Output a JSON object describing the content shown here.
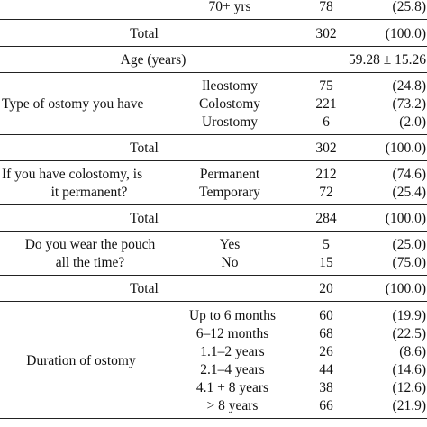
{
  "rows": {
    "age70": {
      "label": "70+ yrs",
      "n": "78",
      "pct": "(25.8)"
    },
    "total1": {
      "label": "Total",
      "n": "302",
      "pct": "(100.0)"
    },
    "age": {
      "label": "Age (years)",
      "value": "59.28 ± 15.26"
    },
    "ostomy_type": {
      "question": "Type of ostomy you have",
      "items": [
        {
          "label": "Ileostomy",
          "n": "75",
          "pct": "(24.8)"
        },
        {
          "label": "Colostomy",
          "n": "221",
          "pct": "(73.2)"
        },
        {
          "label": "Urostomy",
          "n": "6",
          "pct": "(2.0)"
        }
      ]
    },
    "total2": {
      "label": "Total",
      "n": "302",
      "pct": "(100.0)"
    },
    "colostomy_perm": {
      "question_line1": "If you have colostomy, is",
      "question_line2": "it permanent?",
      "items": [
        {
          "label": "Permanent",
          "n": "212",
          "pct": "(74.6)"
        },
        {
          "label": "Temporary",
          "n": "72",
          "pct": "(25.4)"
        }
      ]
    },
    "total3": {
      "label": "Total",
      "n": "284",
      "pct": "(100.0)"
    },
    "pouch": {
      "question_line1": "Do you wear the pouch",
      "question_line2": "all the time?",
      "items": [
        {
          "label": "Yes",
          "n": "5",
          "pct": "(25.0)"
        },
        {
          "label": "No",
          "n": "15",
          "pct": "(75.0)"
        }
      ]
    },
    "total4": {
      "label": "Total",
      "n": "20",
      "pct": "(100.0)"
    },
    "duration": {
      "question": "Duration of ostomy",
      "items": [
        {
          "label": "Up to 6 months",
          "n": "60",
          "pct": "(19.9)"
        },
        {
          "label": "6–12 months",
          "n": "68",
          "pct": "(22.5)"
        },
        {
          "label": "1.1–2 years",
          "n": "26",
          "pct": "(8.6)"
        },
        {
          "label": "2.1–4 years",
          "n": "44",
          "pct": "(14.6)"
        },
        {
          "label": "4.1 + 8 years",
          "n": "38",
          "pct": "(12.6)"
        },
        {
          "label": "> 8 years",
          "n": "66",
          "pct": "(21.9)"
        }
      ]
    }
  }
}
